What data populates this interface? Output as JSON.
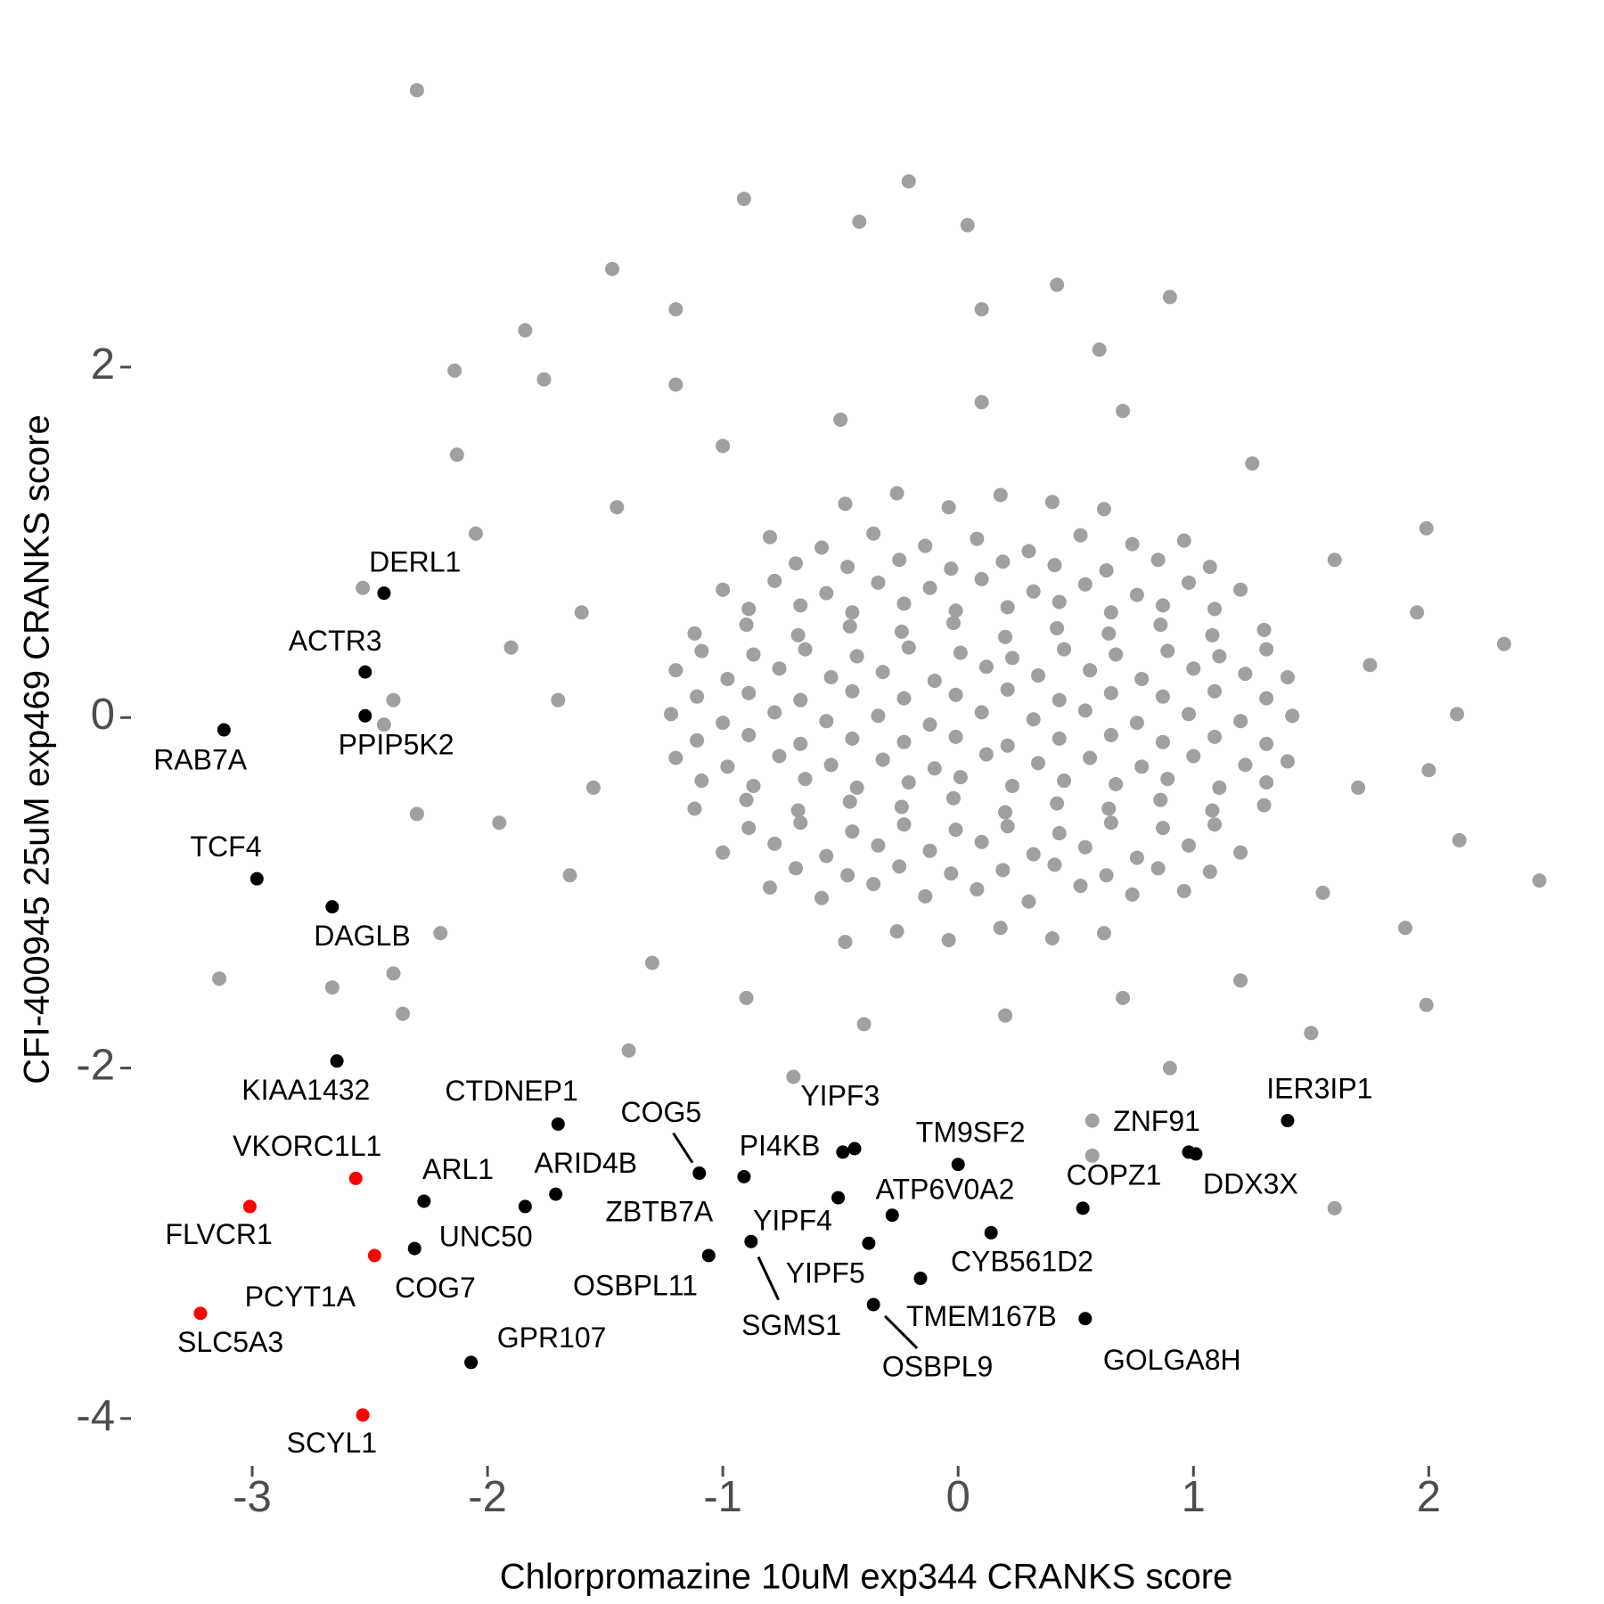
{
  "chart_data": {
    "type": "scatter",
    "x_label": "Chlorpromazine 10uM exp344 CRANKS score",
    "y_label": "CFI-400945 25uM exp469 CRANKS score",
    "xlim": [
      -3.5,
      2.65
    ],
    "ylim": [
      -4.25,
      3.8
    ],
    "xticks": [
      -3,
      -2,
      -1,
      0,
      1,
      2
    ],
    "yticks": [
      -4,
      -2,
      0,
      2
    ],
    "grid": false,
    "point_color": "#a0a0a0",
    "points": [
      [
        -0.48,
        1.22
      ],
      [
        -0.26,
        1.28
      ],
      [
        -0.04,
        1.2
      ],
      [
        0.18,
        1.27
      ],
      [
        0.4,
        1.23
      ],
      [
        0.62,
        1.19
      ],
      [
        -0.8,
        1.03
      ],
      [
        -0.58,
        0.97
      ],
      [
        -0.36,
        1.05
      ],
      [
        -0.14,
        0.98
      ],
      [
        0.08,
        1.02
      ],
      [
        0.3,
        0.95
      ],
      [
        0.52,
        1.04
      ],
      [
        0.74,
        0.99
      ],
      [
        0.96,
        1.01
      ],
      [
        -1.0,
        0.73
      ],
      [
        -0.78,
        0.78
      ],
      [
        -0.56,
        0.71
      ],
      [
        -0.34,
        0.77
      ],
      [
        -0.12,
        0.74
      ],
      [
        0.1,
        0.79
      ],
      [
        0.32,
        0.72
      ],
      [
        0.54,
        0.76
      ],
      [
        0.76,
        0.7
      ],
      [
        0.98,
        0.77
      ],
      [
        1.2,
        0.73
      ],
      [
        -1.12,
        0.48
      ],
      [
        -0.9,
        0.53
      ],
      [
        -0.68,
        0.47
      ],
      [
        -0.46,
        0.52
      ],
      [
        -0.24,
        0.49
      ],
      [
        -0.02,
        0.54
      ],
      [
        0.2,
        0.46
      ],
      [
        0.42,
        0.51
      ],
      [
        0.64,
        0.48
      ],
      [
        0.86,
        0.53
      ],
      [
        1.08,
        0.47
      ],
      [
        1.3,
        0.5
      ],
      [
        -1.2,
        0.27
      ],
      [
        -0.98,
        0.22
      ],
      [
        -0.76,
        0.28
      ],
      [
        -0.54,
        0.23
      ],
      [
        -0.32,
        0.26
      ],
      [
        -0.1,
        0.21
      ],
      [
        0.12,
        0.29
      ],
      [
        0.34,
        0.24
      ],
      [
        0.56,
        0.27
      ],
      [
        0.78,
        0.22
      ],
      [
        1.0,
        0.28
      ],
      [
        1.22,
        0.25
      ],
      [
        1.4,
        0.23
      ],
      [
        -1.22,
        0.02
      ],
      [
        -1.0,
        -0.03
      ],
      [
        -0.78,
        0.03
      ],
      [
        -0.56,
        -0.02
      ],
      [
        -0.34,
        0.01
      ],
      [
        -0.12,
        -0.04
      ],
      [
        0.1,
        0.03
      ],
      [
        0.32,
        -0.01
      ],
      [
        0.54,
        0.04
      ],
      [
        0.76,
        -0.03
      ],
      [
        0.98,
        0.02
      ],
      [
        1.2,
        -0.02
      ],
      [
        1.42,
        0.01
      ],
      [
        -1.2,
        -0.23
      ],
      [
        -0.98,
        -0.28
      ],
      [
        -0.76,
        -0.22
      ],
      [
        -0.54,
        -0.27
      ],
      [
        -0.32,
        -0.24
      ],
      [
        -0.1,
        -0.29
      ],
      [
        0.12,
        -0.21
      ],
      [
        0.34,
        -0.26
      ],
      [
        0.56,
        -0.23
      ],
      [
        0.78,
        -0.28
      ],
      [
        1.0,
        -0.22
      ],
      [
        1.22,
        -0.27
      ],
      [
        1.4,
        -0.25
      ],
      [
        -1.12,
        -0.52
      ],
      [
        -0.9,
        -0.47
      ],
      [
        -0.68,
        -0.53
      ],
      [
        -0.46,
        -0.48
      ],
      [
        -0.24,
        -0.51
      ],
      [
        -0.02,
        -0.46
      ],
      [
        0.2,
        -0.54
      ],
      [
        0.42,
        -0.49
      ],
      [
        0.64,
        -0.52
      ],
      [
        0.86,
        -0.47
      ],
      [
        1.08,
        -0.53
      ],
      [
        1.3,
        -0.5
      ],
      [
        -1.0,
        -0.77
      ],
      [
        -0.78,
        -0.72
      ],
      [
        -0.56,
        -0.79
      ],
      [
        -0.34,
        -0.73
      ],
      [
        -0.12,
        -0.76
      ],
      [
        0.1,
        -0.71
      ],
      [
        0.32,
        -0.78
      ],
      [
        0.54,
        -0.74
      ],
      [
        0.76,
        -0.8
      ],
      [
        0.98,
        -0.73
      ],
      [
        1.2,
        -0.77
      ],
      [
        -0.8,
        -0.97
      ],
      [
        -0.58,
        -1.03
      ],
      [
        -0.36,
        -0.95
      ],
      [
        -0.14,
        -1.02
      ],
      [
        0.08,
        -0.98
      ],
      [
        0.3,
        -1.05
      ],
      [
        0.52,
        -0.96
      ],
      [
        0.74,
        -1.01
      ],
      [
        0.96,
        -0.99
      ],
      [
        -0.48,
        -1.28
      ],
      [
        -0.26,
        -1.22
      ],
      [
        -0.04,
        -1.27
      ],
      [
        0.18,
        -1.2
      ],
      [
        0.4,
        -1.26
      ],
      [
        0.62,
        -1.23
      ],
      [
        -0.89,
        0.62
      ],
      [
        -0.67,
        0.64
      ],
      [
        -0.45,
        0.6
      ],
      [
        -0.23,
        0.65
      ],
      [
        -0.01,
        0.61
      ],
      [
        0.21,
        0.63
      ],
      [
        0.43,
        0.66
      ],
      [
        0.65,
        0.6
      ],
      [
        0.87,
        0.64
      ],
      [
        1.09,
        0.62
      ],
      [
        -1.09,
        0.38
      ],
      [
        -0.87,
        0.36
      ],
      [
        -0.65,
        0.39
      ],
      [
        -0.43,
        0.35
      ],
      [
        -0.21,
        0.4
      ],
      [
        0.01,
        0.37
      ],
      [
        0.23,
        0.34
      ],
      [
        0.45,
        0.39
      ],
      [
        0.67,
        0.36
      ],
      [
        0.89,
        0.38
      ],
      [
        1.11,
        0.35
      ],
      [
        1.31,
        0.39
      ],
      [
        -1.11,
        0.12
      ],
      [
        -0.89,
        0.14
      ],
      [
        -0.67,
        0.1
      ],
      [
        -0.45,
        0.15
      ],
      [
        -0.23,
        0.11
      ],
      [
        -0.01,
        0.13
      ],
      [
        0.21,
        0.16
      ],
      [
        0.43,
        0.1
      ],
      [
        0.65,
        0.14
      ],
      [
        0.87,
        0.12
      ],
      [
        1.09,
        0.15
      ],
      [
        1.31,
        0.11
      ],
      [
        -1.11,
        -0.13
      ],
      [
        -0.89,
        -0.1
      ],
      [
        -0.67,
        -0.15
      ],
      [
        -0.45,
        -0.12
      ],
      [
        -0.23,
        -0.14
      ],
      [
        -0.01,
        -0.11
      ],
      [
        0.21,
        -0.16
      ],
      [
        0.43,
        -0.12
      ],
      [
        0.65,
        -0.1
      ],
      [
        0.87,
        -0.14
      ],
      [
        1.09,
        -0.11
      ],
      [
        1.31,
        -0.15
      ],
      [
        -1.09,
        -0.36
      ],
      [
        -0.87,
        -0.39
      ],
      [
        -0.65,
        -0.35
      ],
      [
        -0.43,
        -0.4
      ],
      [
        -0.21,
        -0.37
      ],
      [
        0.01,
        -0.34
      ],
      [
        0.23,
        -0.39
      ],
      [
        0.45,
        -0.36
      ],
      [
        0.67,
        -0.38
      ],
      [
        0.89,
        -0.35
      ],
      [
        1.11,
        -0.4
      ],
      [
        1.31,
        -0.37
      ],
      [
        -0.89,
        -0.63
      ],
      [
        -0.67,
        -0.6
      ],
      [
        -0.45,
        -0.65
      ],
      [
        -0.23,
        -0.61
      ],
      [
        -0.01,
        -0.64
      ],
      [
        0.21,
        -0.62
      ],
      [
        0.43,
        -0.66
      ],
      [
        0.65,
        -0.6
      ],
      [
        0.87,
        -0.63
      ],
      [
        1.09,
        -0.61
      ],
      [
        -0.69,
        0.88
      ],
      [
        -0.47,
        0.86
      ],
      [
        -0.25,
        0.9
      ],
      [
        -0.03,
        0.85
      ],
      [
        0.19,
        0.89
      ],
      [
        0.41,
        0.87
      ],
      [
        0.63,
        0.84
      ],
      [
        0.85,
        0.9
      ],
      [
        1.07,
        0.86
      ],
      [
        -0.69,
        -0.86
      ],
      [
        -0.47,
        -0.9
      ],
      [
        -0.25,
        -0.85
      ],
      [
        -0.03,
        -0.89
      ],
      [
        0.19,
        -0.87
      ],
      [
        0.41,
        -0.84
      ],
      [
        0.63,
        -0.9
      ],
      [
        0.85,
        -0.86
      ],
      [
        1.07,
        -0.88
      ],
      [
        -1.45,
        1.2
      ],
      [
        -1.6,
        0.6
      ],
      [
        -1.7,
        0.1
      ],
      [
        -1.55,
        -0.4
      ],
      [
        -1.65,
        -0.9
      ],
      [
        -1.3,
        -1.4
      ],
      [
        -0.9,
        -1.6
      ],
      [
        -0.4,
        -1.75
      ],
      [
        0.2,
        -1.7
      ],
      [
        0.7,
        -1.6
      ],
      [
        1.2,
        -1.5
      ],
      [
        1.55,
        -1.0
      ],
      [
        1.7,
        -0.4
      ],
      [
        1.75,
        0.3
      ],
      [
        1.6,
        0.9
      ],
      [
        1.25,
        1.45
      ],
      [
        0.7,
        1.75
      ],
      [
        0.1,
        1.8
      ],
      [
        -0.5,
        1.7
      ],
      [
        -1.0,
        1.55
      ],
      [
        -1.9,
        0.4
      ],
      [
        -1.95,
        -0.6
      ],
      [
        -2.05,
        1.05
      ],
      [
        1.95,
        0.6
      ],
      [
        2.0,
        -0.3
      ],
      [
        -1.4,
        -1.9
      ],
      [
        -0.7,
        -2.05
      ],
      [
        1.5,
        -1.8
      ],
      [
        0.9,
        -2.0
      ],
      [
        -1.2,
        1.9
      ],
      [
        0.6,
        2.1
      ],
      [
        1.9,
        -1.2
      ],
      [
        -2.3,
        3.58
      ],
      [
        -0.91,
        2.96
      ],
      [
        -0.21,
        3.06
      ],
      [
        -0.42,
        2.83
      ],
      [
        0.04,
        2.81
      ],
      [
        -1.47,
        2.56
      ],
      [
        0.42,
        2.47
      ],
      [
        -1.2,
        2.33
      ],
      [
        0.1,
        2.33
      ],
      [
        0.9,
        2.4
      ],
      [
        -1.84,
        2.21
      ],
      [
        -2.14,
        1.98
      ],
      [
        -1.76,
        1.93
      ],
      [
        -2.13,
        1.5
      ],
      [
        2.32,
        0.42
      ],
      [
        2.47,
        -0.93
      ],
      [
        2.13,
        -0.7
      ],
      [
        1.99,
        -1.64
      ],
      [
        -3.14,
        -1.49
      ],
      [
        -2.4,
        -1.46
      ],
      [
        -2.66,
        -1.54
      ],
      [
        -2.36,
        -1.69
      ],
      [
        -2.3,
        -0.55
      ],
      [
        -2.2,
        -1.23
      ],
      [
        1.6,
        -2.8
      ],
      [
        0.57,
        -2.3
      ],
      [
        0.57,
        -2.5
      ],
      [
        -2.53,
        0.74
      ],
      [
        -2.4,
        0.1
      ],
      [
        -2.44,
        -0.04
      ],
      [
        2.12,
        0.02
      ],
      [
        1.99,
        1.08
      ]
    ],
    "labeled": [
      {
        "label": "DERL1",
        "x": -2.44,
        "y": 0.71,
        "color": "#000000"
      },
      {
        "label": "ACTR3",
        "x": -2.52,
        "y": 0.26,
        "color": "#000000"
      },
      {
        "label": "PPIP5K2",
        "x": -2.52,
        "y": 0.01,
        "color": "#000000"
      },
      {
        "label": "RAB7A",
        "x": -3.12,
        "y": -0.07,
        "color": "#000000"
      },
      {
        "label": "TCF4",
        "x": -2.98,
        "y": -0.92,
        "color": "#000000"
      },
      {
        "label": "DAGLB",
        "x": -2.66,
        "y": -1.08,
        "color": "#000000"
      },
      {
        "label": "KIAA1432",
        "x": -2.64,
        "y": -1.96,
        "color": "#000000"
      },
      {
        "label": "CTDNEP1",
        "x": -1.7,
        "y": -2.32,
        "color": "#000000"
      },
      {
        "label": "VKORC1L1",
        "x": -2.56,
        "y": -2.63,
        "color": "#ff0000"
      },
      {
        "label": "FLVCR1",
        "x": -3.01,
        "y": -2.79,
        "color": "#ff0000"
      },
      {
        "label": "ARL1",
        "x": -2.27,
        "y": -2.76,
        "color": "#000000"
      },
      {
        "label": "ARID4B",
        "x": -1.71,
        "y": -2.72,
        "color": "#000000"
      },
      {
        "label": "UNC50",
        "x": -1.84,
        "y": -2.79,
        "color": "#000000"
      },
      {
        "label": "ZBTB7A",
        "x": -0.91,
        "y": -2.62,
        "color": "#000000"
      },
      {
        "label": "PCYT1A",
        "x": -2.48,
        "y": -3.07,
        "color": "#ff0000"
      },
      {
        "label": "COG7",
        "x": -2.31,
        "y": -3.03,
        "color": "#000000"
      },
      {
        "label": "OSBPL11",
        "x": -1.06,
        "y": -3.07,
        "color": "#000000"
      },
      {
        "label": "GPR107",
        "x": -2.07,
        "y": -3.68,
        "color": "#000000"
      },
      {
        "label": "SLC5A3",
        "x": -3.22,
        "y": -3.4,
        "color": "#ff0000"
      },
      {
        "label": "SCYL1",
        "x": -2.53,
        "y": -3.98,
        "color": "#ff0000"
      },
      {
        "label": "COG5",
        "x": -1.1,
        "y": -2.6,
        "color": "#000000"
      },
      {
        "label": "PI4KB",
        "x": -0.49,
        "y": -2.48,
        "color": "#000000"
      },
      {
        "label": "YIPF3",
        "x": -0.44,
        "y": -2.46,
        "color": "#000000"
      },
      {
        "label": "YIPF4",
        "x": -0.51,
        "y": -2.74,
        "color": "#000000"
      },
      {
        "label": "SGMS1",
        "x": -0.88,
        "y": -2.99,
        "color": "#000000"
      },
      {
        "label": "YIPF5",
        "x": -0.38,
        "y": -3.0,
        "color": "#000000"
      },
      {
        "label": "ATP6V0A2",
        "x": -0.28,
        "y": -2.84,
        "color": "#000000"
      },
      {
        "label": "TM9SF2",
        "x": 0.0,
        "y": -2.55,
        "color": "#000000"
      },
      {
        "label": "TMEM167B",
        "x": -0.16,
        "y": -3.2,
        "color": "#000000"
      },
      {
        "label": "OSBPL9",
        "x": -0.36,
        "y": -3.35,
        "color": "#000000"
      },
      {
        "label": "CYB561D2",
        "x": 0.14,
        "y": -2.94,
        "color": "#000000"
      },
      {
        "label": "COPZ1",
        "x": 0.53,
        "y": -2.8,
        "color": "#000000"
      },
      {
        "label": "GOLGA8H",
        "x": 0.54,
        "y": -3.43,
        "color": "#000000"
      },
      {
        "label": "ZNF91",
        "x": 0.98,
        "y": -2.48,
        "color": "#000000"
      },
      {
        "label": "DDX3X",
        "x": 1.01,
        "y": -2.49,
        "color": "#000000"
      },
      {
        "label": "IER3IP1",
        "x": 1.4,
        "y": -2.3,
        "color": "#000000"
      }
    ]
  }
}
